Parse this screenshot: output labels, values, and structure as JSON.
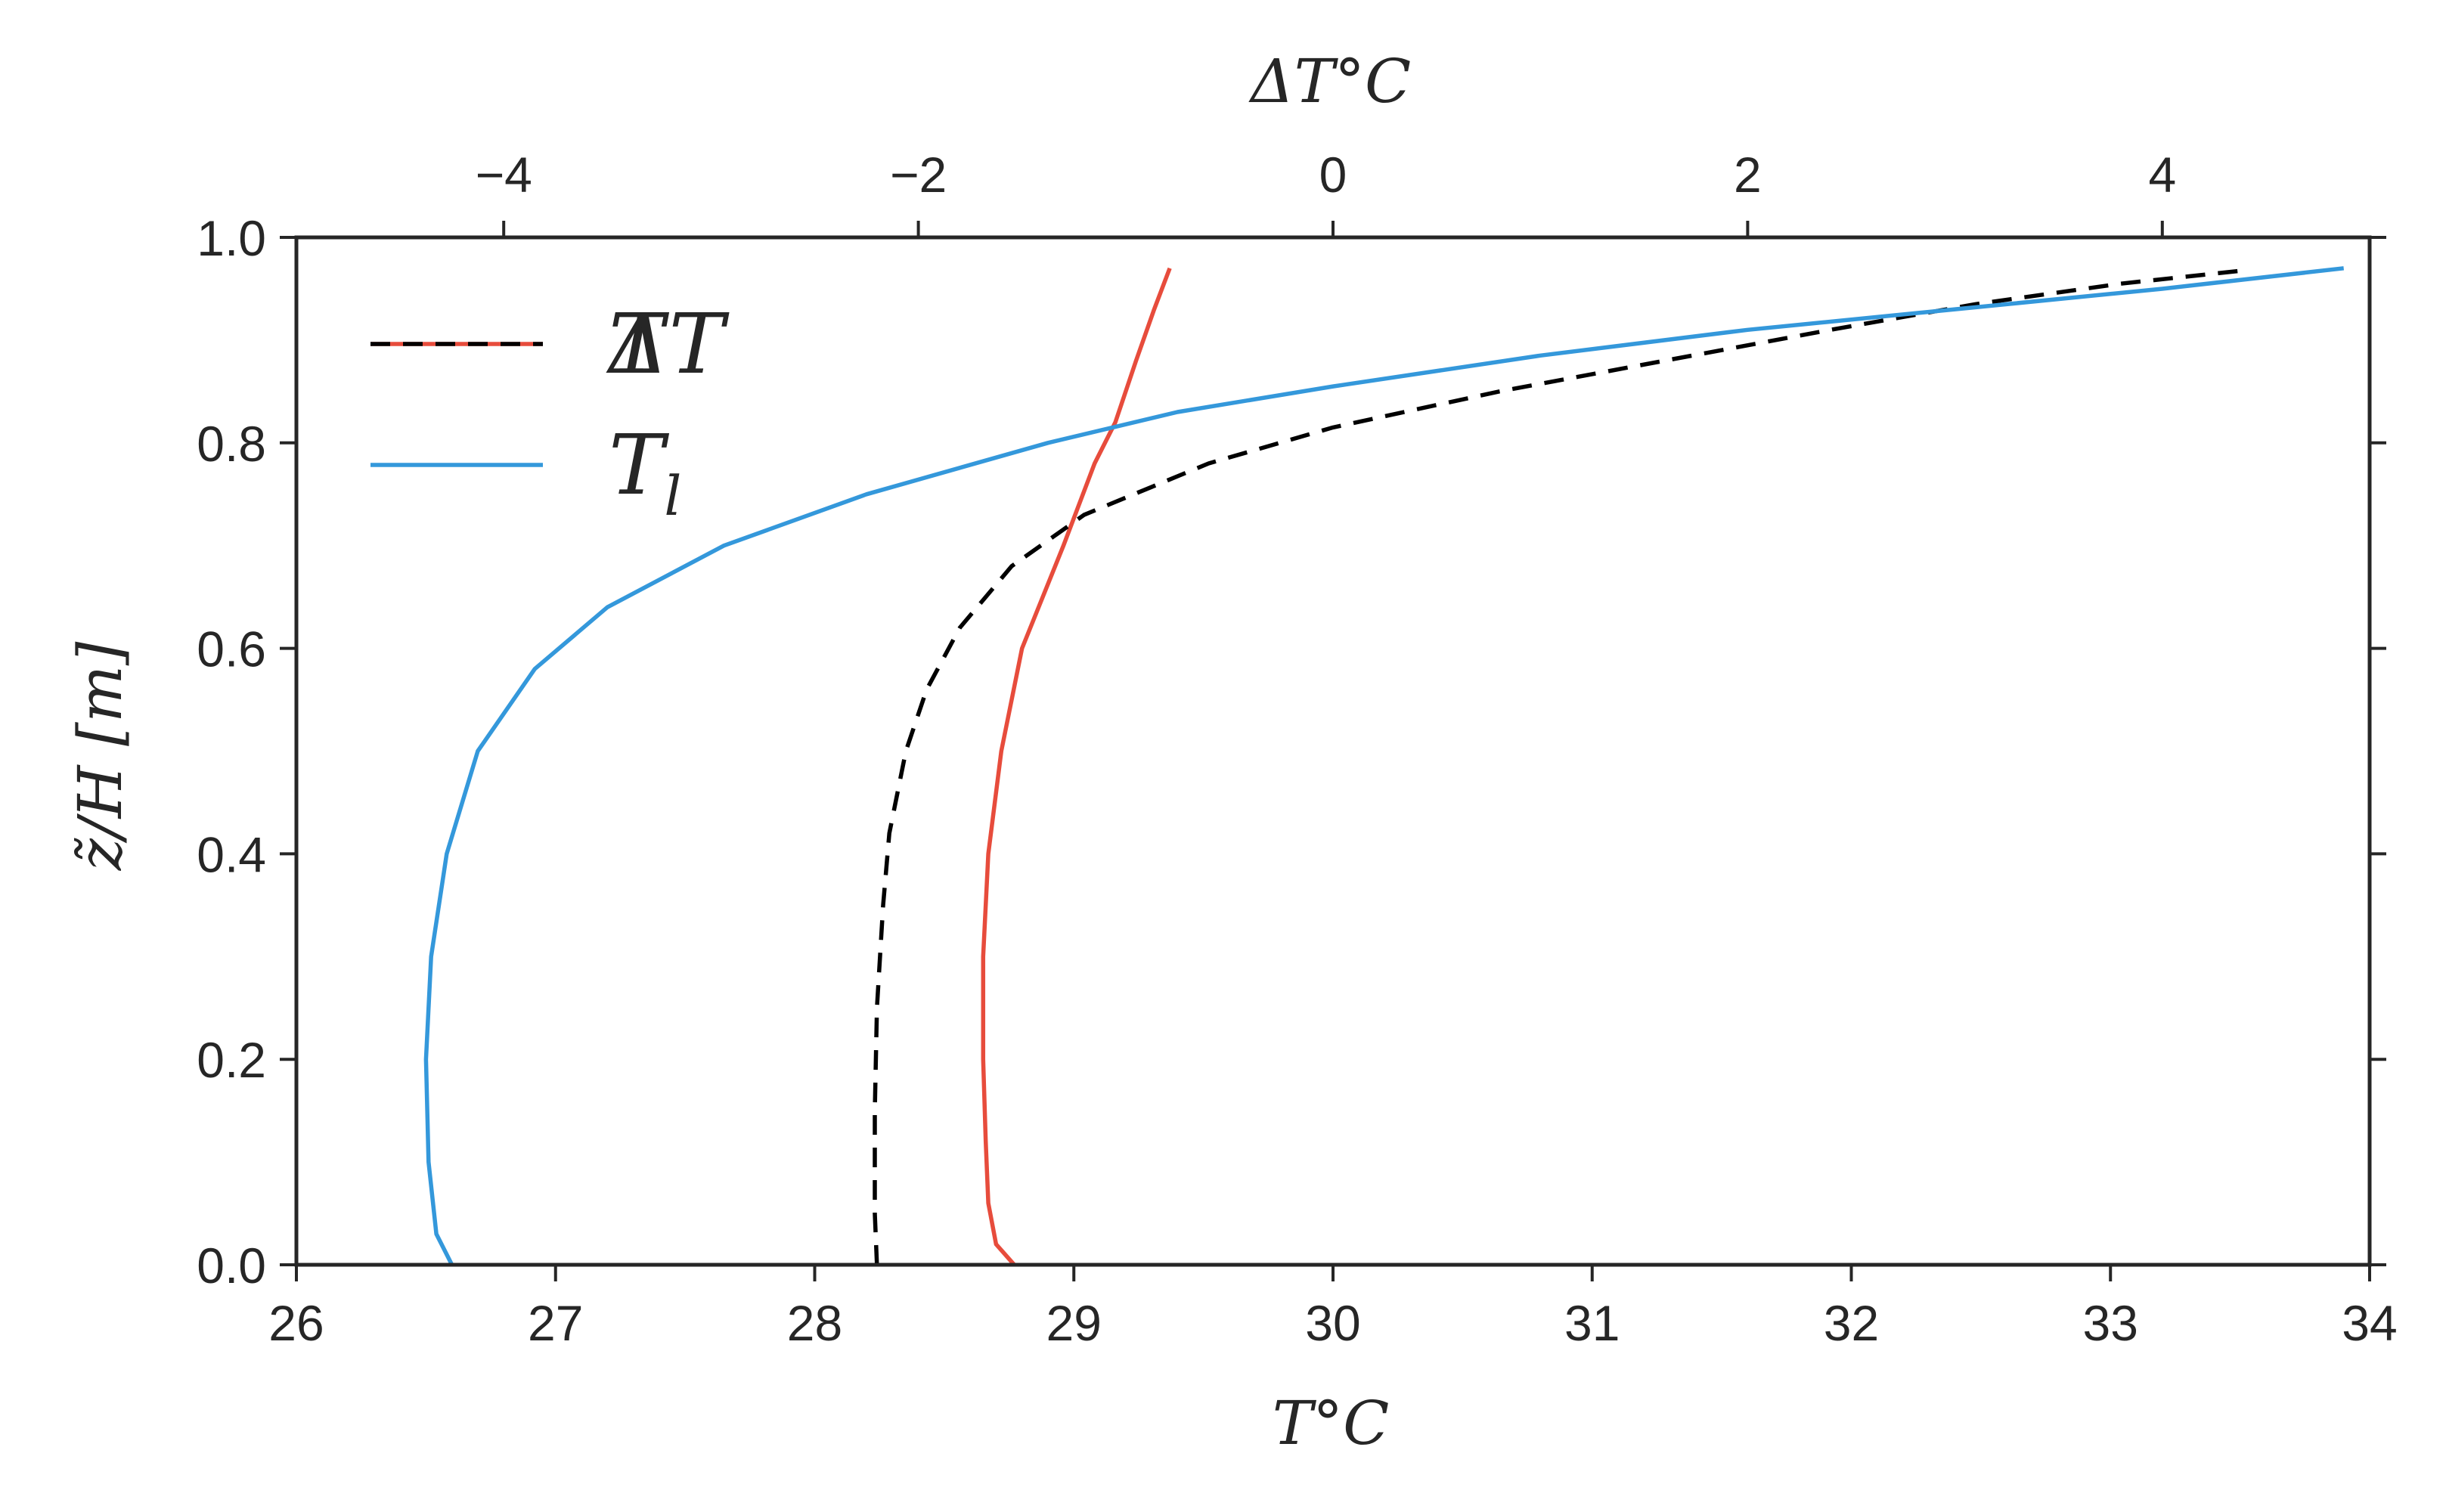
{
  "chart_data": {
    "type": "line",
    "xlabel": "T°C",
    "xlabel_top": "ΔT°C",
    "ylabel": "z̃/H [m]",
    "xlim": [
      26,
      34
    ],
    "xlim_top": [
      -5,
      5
    ],
    "ylim": [
      0,
      1.0
    ],
    "x_ticks": [
      "26",
      "27",
      "28",
      "29",
      "30",
      "31",
      "32",
      "33",
      "34"
    ],
    "x_ticks_top": [
      "−4",
      "−2",
      "0",
      "2",
      "4"
    ],
    "y_ticks": [
      "0.0",
      "0.2",
      "0.4",
      "0.6",
      "0.8",
      "1.0"
    ],
    "grid": false,
    "legend_position": "top-left",
    "legend": [
      {
        "label": "T",
        "overlay_label": "ΔT",
        "style": "dashed-red-black"
      },
      {
        "label": "T",
        "subscript": "l",
        "style": "solid-blue"
      }
    ],
    "series": [
      {
        "axis": "bottom",
        "color": "#e74c3c",
        "dash": false,
        "points": [
          [
            28.77,
            0.0
          ],
          [
            28.7,
            0.02
          ],
          [
            28.67,
            0.06
          ],
          [
            28.66,
            0.12
          ],
          [
            28.65,
            0.2
          ],
          [
            28.65,
            0.3
          ],
          [
            28.67,
            0.4
          ],
          [
            28.72,
            0.5
          ],
          [
            28.8,
            0.6
          ],
          [
            28.96,
            0.7
          ],
          [
            29.08,
            0.78
          ],
          [
            29.16,
            0.82
          ],
          [
            29.24,
            0.88
          ],
          [
            29.31,
            0.93
          ],
          [
            29.37,
            0.97
          ]
        ]
      },
      {
        "axis": "top",
        "color": "#000000",
        "dash": true,
        "points": [
          [
            -2.2,
            0.0
          ],
          [
            -2.21,
            0.05
          ],
          [
            -2.21,
            0.15
          ],
          [
            -2.2,
            0.25
          ],
          [
            -2.17,
            0.35
          ],
          [
            -2.14,
            0.42
          ],
          [
            -2.06,
            0.5
          ],
          [
            -1.96,
            0.56
          ],
          [
            -1.8,
            0.62
          ],
          [
            -1.55,
            0.68
          ],
          [
            -1.2,
            0.73
          ],
          [
            -0.6,
            0.78
          ],
          [
            0.0,
            0.815
          ],
          [
            0.8,
            0.85
          ],
          [
            1.6,
            0.88
          ],
          [
            2.4,
            0.91
          ],
          [
            3.1,
            0.935
          ],
          [
            3.8,
            0.955
          ],
          [
            4.4,
            0.968
          ]
        ]
      },
      {
        "axis": "bottom",
        "color": "#3498db",
        "dash": false,
        "points": [
          [
            26.6,
            0.0
          ],
          [
            26.54,
            0.03
          ],
          [
            26.51,
            0.1
          ],
          [
            26.5,
            0.2
          ],
          [
            26.52,
            0.3
          ],
          [
            26.58,
            0.4
          ],
          [
            26.7,
            0.5
          ],
          [
            26.92,
            0.58
          ],
          [
            27.2,
            0.64
          ],
          [
            27.65,
            0.7
          ],
          [
            28.2,
            0.75
          ],
          [
            28.9,
            0.8
          ],
          [
            29.4,
            0.83
          ],
          [
            30.0,
            0.855
          ],
          [
            30.8,
            0.885
          ],
          [
            31.6,
            0.91
          ],
          [
            32.4,
            0.93
          ],
          [
            33.2,
            0.95
          ],
          [
            33.9,
            0.97
          ]
        ]
      }
    ]
  }
}
